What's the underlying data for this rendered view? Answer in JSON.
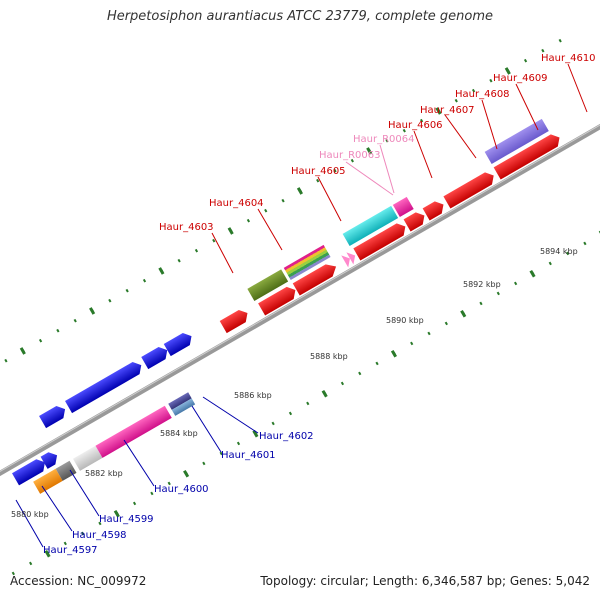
{
  "title": "Herpetosiphon aurantiacus ATCC 23779, complete genome",
  "accession": "Accession: NC_009972",
  "topology": "Topology: circular; Length: 6,346,587 bp; Genes: 5,042",
  "scale_labels": [
    "5880 kbp",
    "5882 kbp",
    "5884 kbp",
    "5886 kbp",
    "5888 kbp",
    "5890 kbp",
    "5892 kbp",
    "5894 kbp"
  ],
  "gene_labels": {
    "top": [
      "Haur_4603",
      "Haur_4604",
      "Haur_4605",
      "Haur_R0063",
      "Haur_R0064",
      "Haur_4606",
      "Haur_4607",
      "Haur_4608",
      "Haur_4609",
      "Haur_4610"
    ],
    "bottom": [
      "Haur_4597",
      "Haur_4598",
      "Haur_4599",
      "Haur_4600",
      "Haur_4601",
      "Haur_4602"
    ]
  },
  "colors": {
    "plus_strand_label": "#cc0000",
    "rna_label": "#ee88bb",
    "minus_strand_label": "#0000aa",
    "scale_tick": "#2a7a2a",
    "backbone": "#999999"
  }
}
